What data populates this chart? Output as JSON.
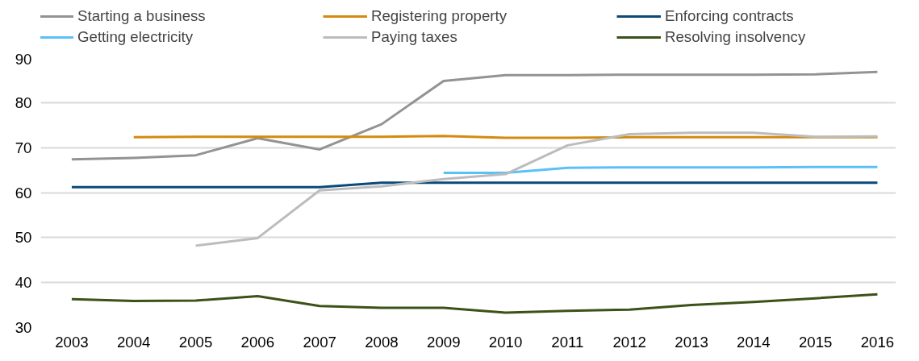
{
  "chart_data": {
    "type": "line",
    "x": [
      2003,
      2004,
      2005,
      2006,
      2007,
      2008,
      2009,
      2010,
      2011,
      2012,
      2013,
      2014,
      2015,
      2016
    ],
    "series": [
      {
        "name": "Starting a business",
        "color": "#939393",
        "values": [
          67.4,
          67.7,
          68.3,
          72.1,
          69.6,
          75.2,
          84.8,
          86.1,
          86.1,
          86.2,
          86.2,
          86.2,
          86.3,
          86.8
        ]
      },
      {
        "name": "Registering property",
        "color": "#d48a0e",
        "values": [
          null,
          72.3,
          72.4,
          72.4,
          72.4,
          72.4,
          72.6,
          72.2,
          72.2,
          72.3,
          72.3,
          72.3,
          72.3,
          72.3
        ]
      },
      {
        "name": "Enforcing contracts",
        "color": "#0b4a78",
        "values": [
          61.2,
          61.2,
          61.2,
          61.2,
          61.2,
          62.2,
          62.2,
          62.2,
          62.2,
          62.2,
          62.2,
          62.2,
          62.2,
          62.2
        ]
      },
      {
        "name": "Getting electricity",
        "color": "#5bc0f8",
        "values": [
          null,
          null,
          null,
          null,
          null,
          null,
          64.4,
          64.4,
          65.5,
          65.6,
          65.6,
          65.6,
          65.7,
          65.7
        ]
      },
      {
        "name": "Paying taxes",
        "color": "#bcbcbc",
        "values": [
          null,
          null,
          48.2,
          49.9,
          60.5,
          61.4,
          63.0,
          64.1,
          70.5,
          73.0,
          73.3,
          73.3,
          72.4,
          72.5
        ]
      },
      {
        "name": "Resolving insolvency",
        "color": "#3b5217",
        "values": [
          36.3,
          35.9,
          36.0,
          37.0,
          34.8,
          34.4,
          34.4,
          33.3,
          33.7,
          34.0,
          35.0,
          35.7,
          36.5,
          37.4
        ]
      }
    ],
    "xlim": [
      2002.5,
      2016.3
    ],
    "ylim": [
      30,
      90
    ],
    "xticks": [
      2003,
      2004,
      2005,
      2006,
      2007,
      2008,
      2009,
      2010,
      2011,
      2012,
      2013,
      2014,
      2015,
      2016
    ],
    "yticks": [
      30,
      40,
      50,
      60,
      70,
      80,
      90
    ],
    "grid": "y",
    "legend": "top",
    "marker": "none",
    "line_style": "solid"
  }
}
